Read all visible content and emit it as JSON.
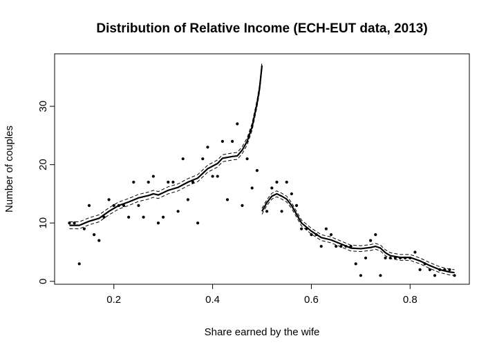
{
  "chart_data": {
    "type": "scatter",
    "title": "Distribution of Relative Income (ECH-EUT data, 2013)",
    "xlabel": "Share earned by the wife",
    "ylabel": "Number of couples",
    "xlim": [
      0.08,
      0.92
    ],
    "ylim": [
      -0.5,
      39
    ],
    "xticks": [
      0.2,
      0.4,
      0.6,
      0.8
    ],
    "xtick_labels": [
      "0.2",
      "0.4",
      "0.6",
      "0.8"
    ],
    "yticks": [
      0,
      10,
      20,
      30
    ],
    "ytick_labels": [
      "0",
      "10",
      "20",
      "30"
    ],
    "grid": false,
    "points": {
      "x": [
        0.11,
        0.12,
        0.13,
        0.14,
        0.15,
        0.16,
        0.17,
        0.18,
        0.19,
        0.2,
        0.21,
        0.22,
        0.23,
        0.24,
        0.25,
        0.26,
        0.27,
        0.28,
        0.29,
        0.3,
        0.31,
        0.32,
        0.33,
        0.34,
        0.35,
        0.36,
        0.37,
        0.38,
        0.39,
        0.4,
        0.41,
        0.42,
        0.43,
        0.44,
        0.45,
        0.46,
        0.47,
        0.48,
        0.49,
        0.51,
        0.52,
        0.53,
        0.54,
        0.55,
        0.56,
        0.57,
        0.58,
        0.59,
        0.6,
        0.61,
        0.62,
        0.63,
        0.64,
        0.65,
        0.66,
        0.67,
        0.68,
        0.69,
        0.7,
        0.71,
        0.72,
        0.73,
        0.74,
        0.75,
        0.76,
        0.77,
        0.78,
        0.79,
        0.8,
        0.81,
        0.82,
        0.83,
        0.84,
        0.85,
        0.86,
        0.87,
        0.88,
        0.89
      ],
      "y": [
        10,
        10,
        3,
        9,
        13,
        8,
        7,
        11,
        14,
        13,
        13,
        13,
        11,
        17,
        13,
        11,
        17,
        18,
        10,
        11,
        17,
        17,
        12,
        21,
        14,
        17,
        10,
        21,
        23,
        18,
        18,
        24,
        14,
        24,
        27,
        13,
        21,
        16,
        19,
        12,
        16,
        17,
        12,
        17,
        15,
        13,
        9,
        9,
        8,
        8,
        6,
        9,
        8,
        6,
        6,
        6,
        6,
        3,
        1,
        4,
        7,
        8,
        1,
        4,
        4,
        4,
        4,
        4,
        4,
        5,
        2,
        3,
        2,
        1,
        2,
        2,
        2,
        1
      ]
    },
    "fit": {
      "left_segment": {
        "x": [
          0.11,
          0.13,
          0.15,
          0.17,
          0.19,
          0.21,
          0.23,
          0.25,
          0.27,
          0.28,
          0.29,
          0.31,
          0.33,
          0.35,
          0.37,
          0.39,
          0.41,
          0.42,
          0.44,
          0.45,
          0.46,
          0.47,
          0.48,
          0.485,
          0.49,
          0.495,
          0.5
        ],
        "y": [
          9.6,
          9.6,
          10.3,
          10.8,
          12.0,
          13.0,
          13.6,
          14.3,
          14.7,
          15.0,
          14.8,
          15.6,
          16.1,
          17.0,
          17.7,
          19.3,
          20.2,
          21.1,
          21.4,
          21.5,
          22.5,
          24.0,
          26.5,
          28.5,
          30.5,
          33.0,
          37.0
        ]
      },
      "right_segment": {
        "x": [
          0.5,
          0.51,
          0.52,
          0.53,
          0.54,
          0.55,
          0.56,
          0.57,
          0.58,
          0.6,
          0.62,
          0.64,
          0.66,
          0.68,
          0.7,
          0.72,
          0.73,
          0.74,
          0.75,
          0.76,
          0.78,
          0.8,
          0.82,
          0.84,
          0.86,
          0.88,
          0.89
        ],
        "y": [
          12.0,
          13.5,
          14.6,
          15.0,
          14.6,
          14.1,
          13.0,
          11.5,
          10.0,
          8.6,
          7.5,
          7.1,
          6.4,
          5.7,
          5.6,
          5.8,
          6.0,
          5.7,
          4.9,
          4.4,
          4.1,
          4.1,
          3.5,
          2.7,
          2.0,
          1.6,
          1.5
        ]
      },
      "band_halfwidth": [
        0.6,
        0.5
      ]
    }
  }
}
